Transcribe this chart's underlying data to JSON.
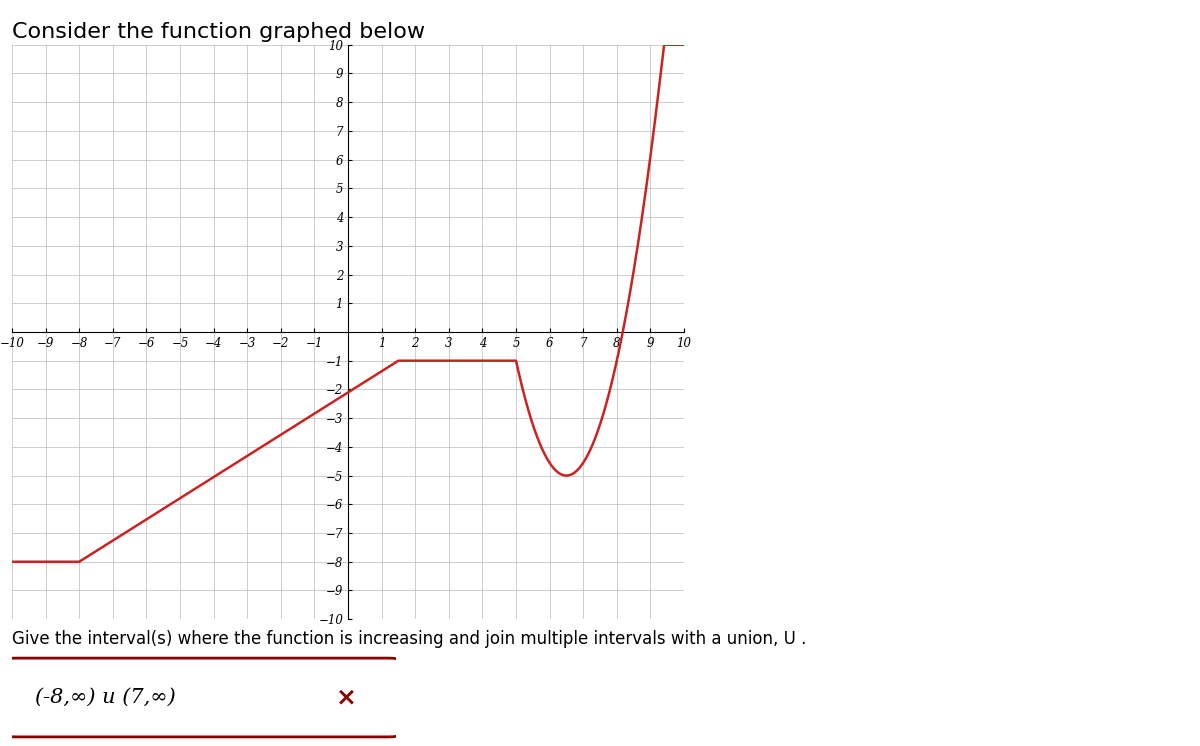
{
  "title": "Consider the function graphed below",
  "title_fontsize": 16,
  "xlim": [
    -10,
    10
  ],
  "ylim": [
    -10,
    10
  ],
  "xticks": [
    -10,
    -9,
    -8,
    -7,
    -6,
    -5,
    -4,
    -3,
    -2,
    -1,
    1,
    2,
    3,
    4,
    5,
    6,
    7,
    8,
    9,
    10
  ],
  "yticks": [
    -10,
    -9,
    -8,
    -7,
    -6,
    -5,
    -4,
    -3,
    -2,
    -1,
    1,
    2,
    3,
    4,
    5,
    6,
    7,
    8,
    9,
    10
  ],
  "curve_color": "#cc2222",
  "curve_linewidth": 1.8,
  "grid_color": "#bbbbbb",
  "grid_linewidth": 0.5,
  "background_color": "#ffffff",
  "answer_text": "(-8,∞) u (7,∞)",
  "question_text": "Give the interval(s) where the function is increasing and join multiple intervals with a union, U .",
  "answer_box_color": "#8b0000",
  "flat_y": -8,
  "flat_x_start": -10,
  "flat_x_end": -8,
  "rise_x_start": -8,
  "rise_x_end": 1.5,
  "rise_y_start": -8,
  "rise_y_end": -1,
  "plateau_x_start": 1.5,
  "plateau_x_end": 5.0,
  "plateau_y": -1,
  "parab_x_start": 5.0,
  "parab_x_end": 10.0,
  "parab_vertex_x": 6.5,
  "parab_vertex_y": -5.0
}
